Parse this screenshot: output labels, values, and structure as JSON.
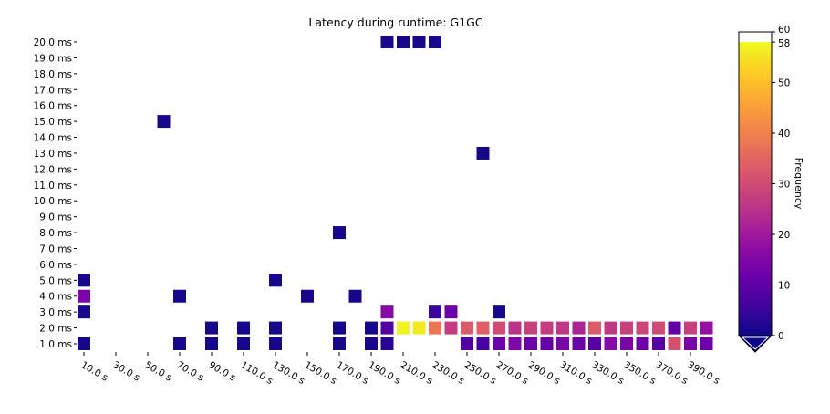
{
  "chart_data": {
    "type": "heatmap",
    "title": "Latency during runtime: G1GC",
    "x_ticks": [
      "10.0 s",
      "30.0 s",
      "50.0 s",
      "70.0 s",
      "90.0 s",
      "110.0 s",
      "130.0 s",
      "150.0 s",
      "170.0 s",
      "190.0 s",
      "210.0 s",
      "230.0 s",
      "250.0 s",
      "270.0 s",
      "290.0 s",
      "310.0 s",
      "330.0 s",
      "350.0 s",
      "370.0 s",
      "390.0 s"
    ],
    "y_ticks": [
      "1.0 ms",
      "2.0 ms",
      "3.0 ms",
      "4.0 ms",
      "5.0 ms",
      "6.0 ms",
      "7.0 ms",
      "8.0 ms",
      "9.0 ms",
      "10.0 ms",
      "11.0 ms",
      "12.0 ms",
      "13.0 ms",
      "14.0 ms",
      "15.0 ms",
      "16.0 ms",
      "17.0 ms",
      "18.0 ms",
      "19.0 ms",
      "20.0 ms"
    ],
    "x_range_s": [
      5,
      405
    ],
    "cell_width_s": 10,
    "colorbar": {
      "label": "Frequency",
      "range": [
        0,
        60
      ],
      "ticks": [
        0,
        10,
        20,
        30,
        40,
        50,
        58,
        60
      ],
      "extend": "min",
      "colormap": "plasma"
    },
    "cells": [
      {
        "x": 10,
        "y": 1,
        "v": 1
      },
      {
        "x": 10,
        "y": 3,
        "v": 1
      },
      {
        "x": 10,
        "y": 4,
        "v": 14
      },
      {
        "x": 10,
        "y": 5,
        "v": 1
      },
      {
        "x": 60,
        "y": 15,
        "v": 1
      },
      {
        "x": 70,
        "y": 1,
        "v": 1
      },
      {
        "x": 70,
        "y": 4,
        "v": 1
      },
      {
        "x": 90,
        "y": 1,
        "v": 1
      },
      {
        "x": 90,
        "y": 2,
        "v": 1
      },
      {
        "x": 110,
        "y": 1,
        "v": 1
      },
      {
        "x": 110,
        "y": 2,
        "v": 1
      },
      {
        "x": 130,
        "y": 1,
        "v": 1
      },
      {
        "x": 130,
        "y": 2,
        "v": 1
      },
      {
        "x": 130,
        "y": 5,
        "v": 1
      },
      {
        "x": 150,
        "y": 4,
        "v": 1
      },
      {
        "x": 170,
        "y": 1,
        "v": 1
      },
      {
        "x": 170,
        "y": 2,
        "v": 1
      },
      {
        "x": 170,
        "y": 8,
        "v": 1
      },
      {
        "x": 180,
        "y": 4,
        "v": 1
      },
      {
        "x": 190,
        "y": 1,
        "v": 1
      },
      {
        "x": 190,
        "y": 2,
        "v": 1
      },
      {
        "x": 200,
        "y": 1,
        "v": 3
      },
      {
        "x": 200,
        "y": 2,
        "v": 8
      },
      {
        "x": 200,
        "y": 3,
        "v": 16
      },
      {
        "x": 200,
        "y": 20,
        "v": 1
      },
      {
        "x": 210,
        "y": 2,
        "v": 57
      },
      {
        "x": 210,
        "y": 20,
        "v": 1
      },
      {
        "x": 220,
        "y": 2,
        "v": 56
      },
      {
        "x": 220,
        "y": 20,
        "v": 1
      },
      {
        "x": 230,
        "y": 2,
        "v": 38
      },
      {
        "x": 230,
        "y": 3,
        "v": 5
      },
      {
        "x": 230,
        "y": 20,
        "v": 1
      },
      {
        "x": 240,
        "y": 2,
        "v": 27
      },
      {
        "x": 240,
        "y": 3,
        "v": 12
      },
      {
        "x": 250,
        "y": 1,
        "v": 8
      },
      {
        "x": 250,
        "y": 2,
        "v": 33
      },
      {
        "x": 260,
        "y": 1,
        "v": 7
      },
      {
        "x": 260,
        "y": 2,
        "v": 34
      },
      {
        "x": 260,
        "y": 13,
        "v": 1
      },
      {
        "x": 270,
        "y": 1,
        "v": 12
      },
      {
        "x": 270,
        "y": 2,
        "v": 30
      },
      {
        "x": 270,
        "y": 3,
        "v": 1
      },
      {
        "x": 280,
        "y": 1,
        "v": 15
      },
      {
        "x": 280,
        "y": 2,
        "v": 25
      },
      {
        "x": 290,
        "y": 1,
        "v": 12
      },
      {
        "x": 290,
        "y": 2,
        "v": 28
      },
      {
        "x": 300,
        "y": 1,
        "v": 11
      },
      {
        "x": 300,
        "y": 2,
        "v": 27
      },
      {
        "x": 310,
        "y": 1,
        "v": 14
      },
      {
        "x": 310,
        "y": 2,
        "v": 26
      },
      {
        "x": 320,
        "y": 1,
        "v": 12
      },
      {
        "x": 320,
        "y": 2,
        "v": 22
      },
      {
        "x": 330,
        "y": 1,
        "v": 9
      },
      {
        "x": 330,
        "y": 2,
        "v": 33
      },
      {
        "x": 340,
        "y": 1,
        "v": 16
      },
      {
        "x": 340,
        "y": 2,
        "v": 26
      },
      {
        "x": 350,
        "y": 1,
        "v": 14
      },
      {
        "x": 350,
        "y": 2,
        "v": 28
      },
      {
        "x": 360,
        "y": 1,
        "v": 12
      },
      {
        "x": 360,
        "y": 2,
        "v": 29
      },
      {
        "x": 370,
        "y": 1,
        "v": 9
      },
      {
        "x": 370,
        "y": 2,
        "v": 30
      },
      {
        "x": 380,
        "y": 1,
        "v": 31
      },
      {
        "x": 380,
        "y": 2,
        "v": 10
      },
      {
        "x": 390,
        "y": 1,
        "v": 14
      },
      {
        "x": 390,
        "y": 2,
        "v": 28
      },
      {
        "x": 400,
        "y": 1,
        "v": 12
      },
      {
        "x": 400,
        "y": 2,
        "v": 18
      }
    ]
  }
}
